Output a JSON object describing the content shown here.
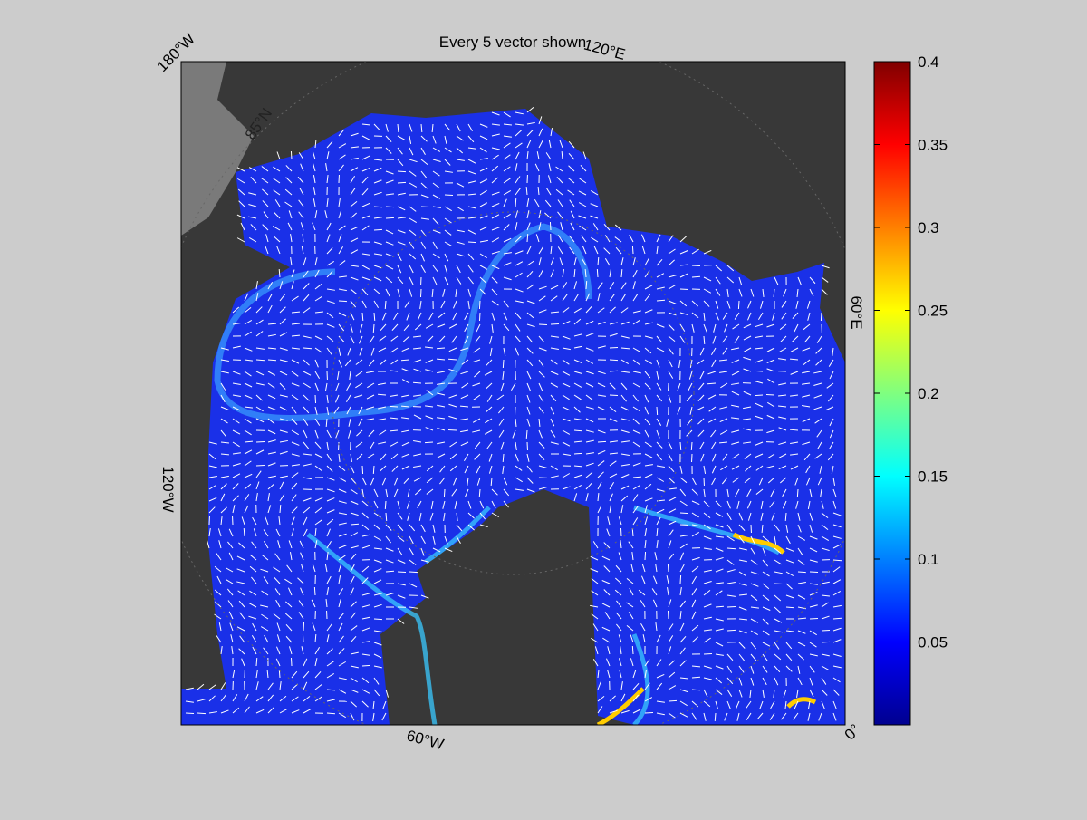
{
  "map": {
    "title": "Every 5 vector shown",
    "longitude_labels": [
      "180°W",
      "120°E",
      "60°E",
      "0°",
      "60°W",
      "120°W"
    ],
    "latitude_labels": [
      "85°N"
    ],
    "colorbar": {
      "colormap": "jet",
      "lim": [
        0,
        0.4
      ],
      "ticks": [
        0.05,
        0.1,
        0.15,
        0.2,
        0.25,
        0.3,
        0.35,
        0.4
      ]
    }
  }
}
